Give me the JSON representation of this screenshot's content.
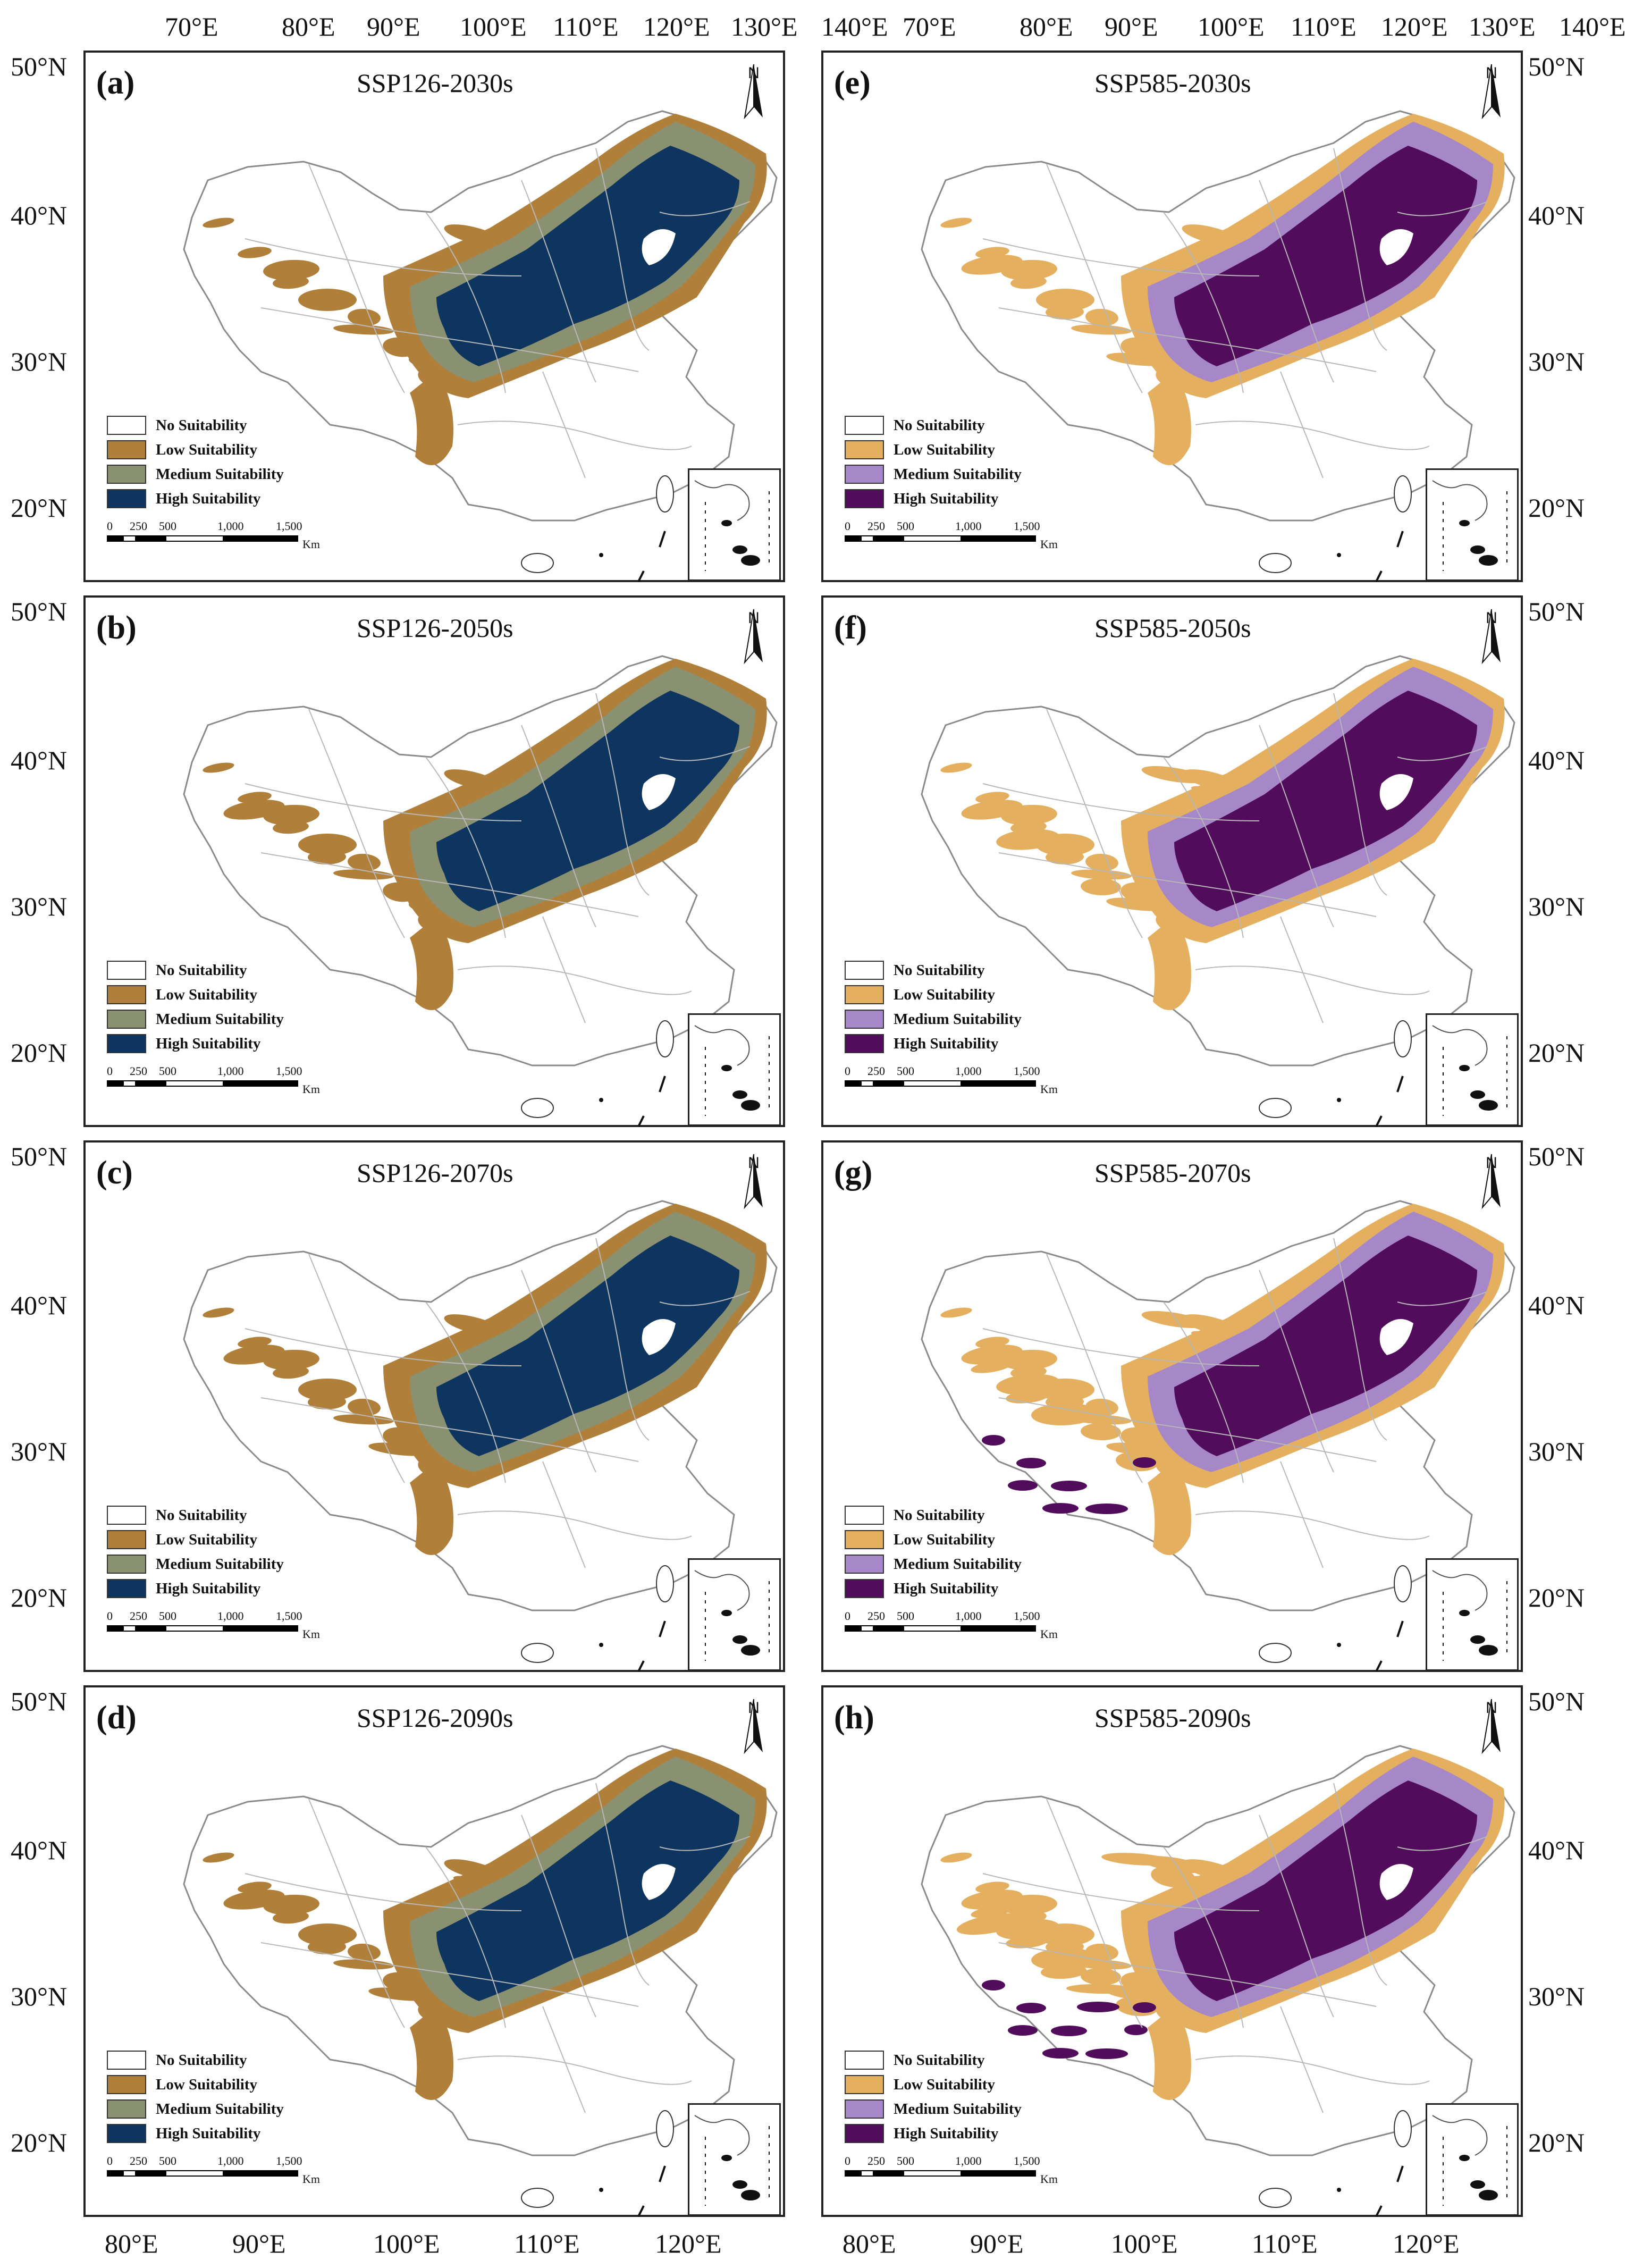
{
  "colors": {
    "ssp126": [
      "#ffffff",
      "#b0803a",
      "#8a9170",
      "#0d3560"
    ],
    "ssp585": [
      "#ffffff",
      "#e4b060",
      "#a688c8",
      "#520c5c"
    ],
    "boundary": "#b8b8b8"
  },
  "legend_labels": [
    "No Suitability",
    "Low Suitability",
    "Medium Suitability",
    "High Suitability"
  ],
  "scale_bar": {
    "ticks": [
      "0",
      "250",
      "500",
      "1,000",
      "1,500"
    ],
    "unit": "Km"
  },
  "north_label": "N",
  "top_axis": {
    "left": [
      "70°E",
      "80°E",
      "90°E",
      "100°E",
      "110°E",
      "120°E",
      "130°E",
      "140°E"
    ],
    "right": [
      "70°E",
      "80°E",
      "90°E",
      "100°E",
      "110°E",
      "120°E",
      "130°E",
      "140°E"
    ]
  },
  "bottom_axis": {
    "left": [
      "80°E",
      "90°E",
      "100°E",
      "110°E",
      "120°E"
    ],
    "right": [
      "80°E",
      "90°E",
      "100°E",
      "110°E",
      "120°E"
    ]
  },
  "panels": [
    {
      "letter": "(a)",
      "title": "SSP126-2030s",
      "scenario": "ssp126",
      "level": 0.2,
      "left_lat": [
        "50°N",
        "40°N",
        "30°N",
        "20°N"
      ]
    },
    {
      "letter": "(b)",
      "title": "SSP126-2050s",
      "scenario": "ssp126",
      "level": 0.25,
      "left_lat": [
        "50°N",
        "40°N",
        "30°N",
        "20°N"
      ]
    },
    {
      "letter": "(c)",
      "title": "SSP126-2070s",
      "scenario": "ssp126",
      "level": 0.3,
      "left_lat": [
        "50°N",
        "40°N",
        "30°N",
        "20°N"
      ]
    },
    {
      "letter": "(d)",
      "title": "SSP126-2090s",
      "scenario": "ssp126",
      "level": 0.35,
      "left_lat": [
        "50°N",
        "40°N",
        "30°N",
        "20°N"
      ]
    },
    {
      "letter": "(e)",
      "title": "SSP585-2030s",
      "scenario": "ssp585",
      "level": 0.3,
      "right_lat": [
        "50°N",
        "40°N",
        "30°N",
        "20°N"
      ]
    },
    {
      "letter": "(f)",
      "title": "SSP585-2050s",
      "scenario": "ssp585",
      "level": 0.45,
      "right_lat": [
        "50°N",
        "40°N",
        "30°N",
        "20°N"
      ]
    },
    {
      "letter": "(g)",
      "title": "SSP585-2070s",
      "scenario": "ssp585",
      "level": 0.65,
      "right_lat": [
        "50°N",
        "40°N",
        "30°N",
        "20°N"
      ]
    },
    {
      "letter": "(h)",
      "title": "SSP585-2090s",
      "scenario": "ssp585",
      "level": 0.85,
      "right_lat": [
        "50°N",
        "40°N",
        "30°N",
        "20°N"
      ]
    }
  ]
}
